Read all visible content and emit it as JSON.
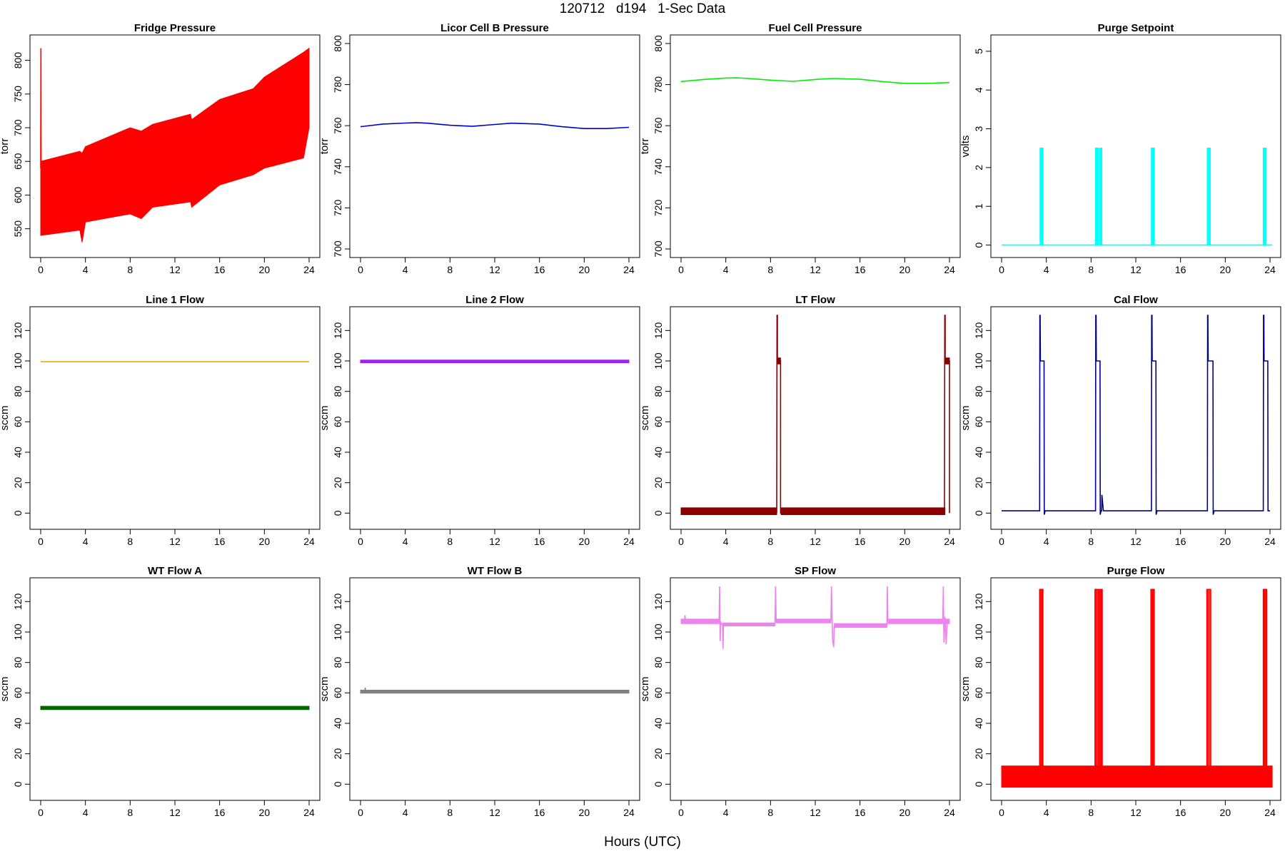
{
  "figure": {
    "title": "120712   d194   1-Sec Data",
    "xlabel": "Hours (UTC)"
  },
  "chart_data": [
    {
      "id": "fridge-pressure",
      "type": "line",
      "title": "Fridge Pressure",
      "ylabel": "torr",
      "color": "#ff0000",
      "xlim": [
        0,
        24
      ],
      "ylim": [
        520,
        825
      ],
      "xticks": [
        0,
        4,
        8,
        12,
        16,
        20,
        24
      ],
      "yticks": [
        550,
        600,
        650,
        700,
        750,
        800
      ],
      "series": [
        {
          "kind": "band",
          "x": [
            0,
            3.5,
            3.7,
            4,
            8,
            9,
            10,
            13.4,
            13.5,
            16,
            19,
            20,
            23.5,
            24
          ],
          "lower": [
            540,
            548,
            530,
            560,
            572,
            565,
            582,
            590,
            582,
            615,
            630,
            640,
            655,
            700
          ],
          "upper": [
            650,
            665,
            662,
            672,
            700,
            695,
            705,
            720,
            712,
            742,
            758,
            775,
            812,
            818
          ]
        },
        {
          "kind": "line",
          "x": [
            0,
            0.02,
            0.04
          ],
          "y": [
            640,
            818,
            650
          ]
        }
      ]
    },
    {
      "id": "licor-cell-b-pressure",
      "type": "line",
      "title": "Licor Cell B Pressure",
      "ylabel": "torr",
      "color": "#0000cd",
      "xlim": [
        0,
        24
      ],
      "ylim": [
        700,
        800
      ],
      "xticks": [
        0,
        4,
        8,
        12,
        16,
        20,
        24
      ],
      "yticks": [
        700,
        720,
        740,
        760,
        780,
        800
      ],
      "series": [
        {
          "kind": "line",
          "x": [
            0,
            2,
            4,
            5,
            6,
            8,
            10,
            12,
            13.5,
            16,
            18,
            20,
            22,
            24
          ],
          "y": [
            759.5,
            760.8,
            761.3,
            761.5,
            761.2,
            760.2,
            759.7,
            760.6,
            761.2,
            760.8,
            759.5,
            758.6,
            758.6,
            759.2
          ]
        }
      ]
    },
    {
      "id": "fuel-cell-pressure",
      "type": "line",
      "title": "Fuel Cell Pressure",
      "ylabel": "torr",
      "color": "#00ee00",
      "xlim": [
        0,
        24
      ],
      "ylim": [
        700,
        800
      ],
      "xticks": [
        0,
        4,
        8,
        12,
        16,
        20,
        24
      ],
      "yticks": [
        700,
        720,
        740,
        760,
        780,
        800
      ],
      "series": [
        {
          "kind": "line",
          "x": [
            0,
            2,
            4,
            5,
            6,
            8,
            10,
            12,
            13.5,
            16,
            18,
            20,
            22,
            24
          ],
          "y": [
            781.5,
            782.5,
            783.2,
            783.3,
            783,
            782.2,
            781.6,
            782.5,
            783,
            782.6,
            781.5,
            780.6,
            780.6,
            781
          ]
        }
      ]
    },
    {
      "id": "purge-setpoint",
      "type": "line",
      "title": "Purge Setpoint",
      "ylabel": "volts",
      "color": "#00ffff",
      "xlim": [
        0,
        24
      ],
      "ylim": [
        -0.1,
        5.2
      ],
      "xticks": [
        0,
        4,
        8,
        12,
        16,
        20,
        24
      ],
      "yticks": [
        0,
        1,
        2,
        3,
        4,
        5
      ],
      "series": [
        {
          "kind": "pulses",
          "x0": 0,
          "x1": 24.2,
          "base": 0,
          "high": 2.5,
          "pulses": [
            [
              3.45,
              3.7
            ],
            [
              8.4,
              8.65
            ],
            [
              8.8,
              8.95
            ],
            [
              13.4,
              13.65
            ],
            [
              18.4,
              18.65
            ],
            [
              23.4,
              23.65
            ]
          ]
        }
      ]
    },
    {
      "id": "line-1-flow",
      "type": "line",
      "title": "Line 1 Flow",
      "ylabel": "sccm",
      "color": "#ffa500",
      "xlim": [
        0,
        24
      ],
      "ylim": [
        -5,
        130
      ],
      "xticks": [
        0,
        4,
        8,
        12,
        16,
        20,
        24
      ],
      "yticks": [
        0,
        20,
        40,
        60,
        80,
        100,
        120
      ],
      "series": [
        {
          "kind": "line",
          "x": [
            0,
            24
          ],
          "y": [
            99.5,
            99.5
          ]
        }
      ]
    },
    {
      "id": "line-2-flow",
      "type": "line",
      "title": "Line 2 Flow",
      "ylabel": "sccm",
      "color": "#a020f0",
      "xlim": [
        0,
        24
      ],
      "ylim": [
        -5,
        130
      ],
      "xticks": [
        0,
        4,
        8,
        12,
        16,
        20,
        24
      ],
      "yticks": [
        0,
        20,
        40,
        60,
        80,
        100,
        120
      ],
      "series": [
        {
          "kind": "band",
          "x": [
            0,
            24
          ],
          "lower": [
            98.8,
            98.8
          ],
          "upper": [
            100.6,
            100.6
          ]
        }
      ]
    },
    {
      "id": "lt-flow",
      "type": "line",
      "title": "LT Flow",
      "ylabel": "sccm",
      "color": "#8b0000",
      "xlim": [
        0,
        24
      ],
      "ylim": [
        -5,
        130
      ],
      "xticks": [
        0,
        4,
        8,
        12,
        16,
        20,
        24
      ],
      "yticks": [
        0,
        20,
        40,
        60,
        80,
        100,
        120
      ],
      "series": [
        {
          "kind": "band",
          "x": [
            0,
            8.55
          ],
          "lower": [
            -1,
            -1
          ],
          "upper": [
            3.5,
            3.5
          ]
        },
        {
          "kind": "band",
          "x": [
            8.95,
            23.6
          ],
          "lower": [
            -1,
            -1
          ],
          "upper": [
            3.5,
            3.5
          ]
        },
        {
          "kind": "band",
          "x": [
            8.6,
            8.9
          ],
          "lower": [
            98,
            98
          ],
          "upper": [
            102,
            102
          ]
        },
        {
          "kind": "band",
          "x": [
            23.65,
            24
          ],
          "lower": [
            98,
            98
          ],
          "upper": [
            102,
            102
          ]
        },
        {
          "kind": "line",
          "x": [
            8.55,
            8.58,
            8.62,
            8.62,
            8.9,
            8.9,
            8.95
          ],
          "y": [
            0,
            130,
            130,
            100,
            100,
            0,
            0
          ]
        },
        {
          "kind": "line",
          "x": [
            23.55,
            23.58,
            23.62,
            23.62,
            24,
            24
          ],
          "y": [
            0,
            130,
            130,
            100,
            100,
            0
          ]
        }
      ]
    },
    {
      "id": "cal-flow",
      "type": "line",
      "title": "Cal Flow",
      "ylabel": "sccm",
      "color": "#00008b",
      "xlim": [
        0,
        24
      ],
      "ylim": [
        -5,
        130
      ],
      "xticks": [
        0,
        4,
        8,
        12,
        16,
        20,
        24
      ],
      "yticks": [
        0,
        20,
        40,
        60,
        80,
        100,
        120
      ],
      "series": [
        {
          "kind": "line",
          "x": [
            0,
            3.4,
            3.42,
            3.45,
            3.47,
            3.8,
            3.82,
            3.9,
            8.4,
            8.42,
            8.45,
            8.47,
            8.8,
            8.82,
            8.9,
            8.95,
            8.97,
            9.1,
            13.4,
            13.42,
            13.45,
            13.47,
            13.8,
            13.82,
            13.9,
            18.4,
            18.42,
            18.45,
            18.47,
            18.9,
            18.92,
            19,
            23.4,
            23.42,
            23.45,
            23.47,
            23.8,
            23.82,
            24
          ],
          "y": [
            1.5,
            1.5,
            130,
            130,
            100,
            100,
            -1,
            1.5,
            1.5,
            130,
            130,
            100,
            100,
            -1,
            1.5,
            1.5,
            12,
            1.5,
            1.5,
            130,
            130,
            100,
            100,
            -1,
            1.5,
            1.5,
            130,
            130,
            100,
            100,
            -1,
            1.5,
            1.5,
            130,
            130,
            100,
            100,
            1.5,
            1.5
          ]
        }
      ]
    },
    {
      "id": "wt-flow-a",
      "type": "line",
      "title": "WT Flow A",
      "ylabel": "sccm",
      "color": "#006400",
      "xlim": [
        0,
        24
      ],
      "ylim": [
        -5,
        130
      ],
      "xticks": [
        0,
        4,
        8,
        12,
        16,
        20,
        24
      ],
      "yticks": [
        0,
        20,
        40,
        60,
        80,
        100,
        120
      ],
      "series": [
        {
          "kind": "band",
          "x": [
            0,
            24
          ],
          "lower": [
            49,
            49
          ],
          "upper": [
            51.2,
            51.2
          ]
        }
      ]
    },
    {
      "id": "wt-flow-b",
      "type": "line",
      "title": "WT Flow B",
      "ylabel": "sccm",
      "color": "#808080",
      "xlim": [
        0,
        24
      ],
      "ylim": [
        -5,
        130
      ],
      "xticks": [
        0,
        4,
        8,
        12,
        16,
        20,
        24
      ],
      "yticks": [
        0,
        20,
        40,
        60,
        80,
        100,
        120
      ],
      "series": [
        {
          "kind": "band",
          "x": [
            0,
            24
          ],
          "lower": [
            59.8,
            59.8
          ],
          "upper": [
            61.8,
            61.8
          ]
        },
        {
          "kind": "line",
          "x": [
            0.4,
            0.42,
            0.44
          ],
          "y": [
            61,
            63.5,
            61
          ]
        }
      ]
    },
    {
      "id": "sp-flow",
      "type": "line",
      "title": "SP Flow",
      "ylabel": "sccm",
      "color": "#ee82ee",
      "xlim": [
        0,
        24
      ],
      "ylim": [
        -5,
        130
      ],
      "xticks": [
        0,
        4,
        8,
        12,
        16,
        20,
        24
      ],
      "yticks": [
        0,
        20,
        40,
        60,
        80,
        100,
        120
      ],
      "series": [
        {
          "kind": "band",
          "x": [
            0,
            3.4
          ],
          "lower": [
            105.5,
            105.5
          ],
          "upper": [
            108.5,
            108.5
          ]
        },
        {
          "kind": "band",
          "x": [
            3.7,
            8.4
          ],
          "lower": [
            104,
            104
          ],
          "upper": [
            106,
            106
          ]
        },
        {
          "kind": "band",
          "x": [
            8.5,
            13.4
          ],
          "lower": [
            106,
            106
          ],
          "upper": [
            108.5,
            108.5
          ]
        },
        {
          "kind": "band",
          "x": [
            13.7,
            18.4
          ],
          "lower": [
            103,
            103
          ],
          "upper": [
            105.5,
            105.5
          ]
        },
        {
          "kind": "band",
          "x": [
            18.5,
            24
          ],
          "lower": [
            105.5,
            105.5
          ],
          "upper": [
            108.5,
            108.5
          ]
        },
        {
          "kind": "line",
          "x": [
            0.3,
            0.35,
            0.4
          ],
          "y": [
            107,
            111,
            107
          ]
        },
        {
          "kind": "line",
          "x": [
            3.4,
            3.45,
            3.5,
            3.55,
            3.6,
            3.7,
            3.75,
            3.8
          ],
          "y": [
            107,
            130,
            94,
            107,
            105,
            105,
            89,
            105
          ]
        },
        {
          "kind": "line",
          "x": [
            8.4,
            8.45,
            8.5
          ],
          "y": [
            105,
            130,
            107
          ]
        },
        {
          "kind": "line",
          "x": [
            13.4,
            13.45,
            13.55,
            13.65,
            13.7
          ],
          "y": [
            107,
            130,
            95,
            90,
            104
          ]
        },
        {
          "kind": "line",
          "x": [
            18.4,
            18.45,
            18.5
          ],
          "y": [
            104,
            130,
            107
          ]
        },
        {
          "kind": "line",
          "x": [
            23.4,
            23.45,
            23.5,
            23.6,
            23.7,
            23.8
          ],
          "y": [
            107,
            130,
            93,
            110,
            92,
            108
          ]
        }
      ]
    },
    {
      "id": "purge-flow",
      "type": "line",
      "title": "Purge Flow",
      "ylabel": "sccm",
      "color": "#ff0000",
      "xlim": [
        0,
        24
      ],
      "ylim": [
        -5,
        130
      ],
      "xticks": [
        0,
        4,
        8,
        12,
        16,
        20,
        24
      ],
      "yticks": [
        0,
        20,
        40,
        60,
        80,
        100,
        120
      ],
      "series": [
        {
          "kind": "band",
          "x": [
            0,
            24.2
          ],
          "lower": [
            -2,
            -2
          ],
          "upper": [
            12,
            12
          ]
        },
        {
          "kind": "pulses",
          "x0": 0,
          "x1": 24.2,
          "base": 5,
          "high": 128,
          "pulses": [
            [
              3.4,
              3.7
            ],
            [
              8.35,
              8.7
            ],
            [
              8.8,
              9.0
            ],
            [
              13.35,
              13.65
            ],
            [
              18.35,
              18.7
            ],
            [
              23.4,
              23.7
            ]
          ]
        }
      ]
    }
  ]
}
